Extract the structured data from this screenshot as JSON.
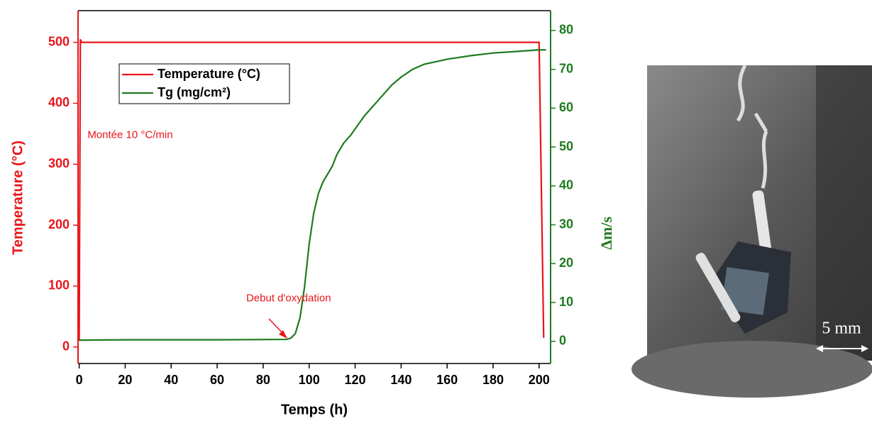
{
  "chart_data": {
    "type": "line",
    "x_label": "Temps (h)",
    "y_label": "Temperature (°C)",
    "y2_label": "Δm/s",
    "xlim": [
      -0.5,
      205
    ],
    "xticks": [
      0,
      20,
      40,
      60,
      80,
      100,
      120,
      140,
      160,
      180,
      200
    ],
    "ylim": [
      -27,
      552
    ],
    "yticks": [
      0,
      100,
      200,
      300,
      400,
      500
    ],
    "y2lim": [
      -5.7,
      85.1
    ],
    "y2ticks": [
      0,
      10,
      20,
      30,
      40,
      50,
      60,
      70,
      80
    ],
    "y_color": "#e8141a",
    "y2_color": "#1f7a1f",
    "legend": "upper left",
    "series": [
      {
        "name": "Temperature (°C)",
        "color": "#e8141a",
        "x": [
          0,
          0.5,
          1,
          200,
          202
        ],
        "values": [
          10,
          505,
          500,
          500,
          15
        ]
      },
      {
        "name": "Tg (mg/cm²)",
        "color": "#1f7a1f",
        "axis": "y2",
        "x": [
          0,
          20,
          60,
          90,
          92,
          94,
          96,
          98,
          100,
          102,
          104,
          106,
          108,
          110,
          112,
          115,
          118,
          121,
          124,
          127,
          130,
          133,
          136,
          140,
          145,
          150,
          160,
          170,
          180,
          190,
          200,
          203
        ],
        "values": [
          0.3,
          0.4,
          0.4,
          0.5,
          0.8,
          2,
          6,
          14,
          25,
          33,
          38,
          41,
          43,
          45,
          48,
          51,
          53,
          55.5,
          58,
          60,
          62,
          64,
          66,
          68,
          70,
          71.3,
          72.6,
          73.5,
          74.2,
          74.6,
          75,
          75
        ]
      }
    ],
    "annotations": [
      {
        "text": "Montée 10 °C/min",
        "x": 3,
        "y": 350
      },
      {
        "text": "Debut d'oxydation",
        "x": 72,
        "y": 82
      }
    ]
  },
  "photo": {
    "scale_label": "5 mm"
  }
}
